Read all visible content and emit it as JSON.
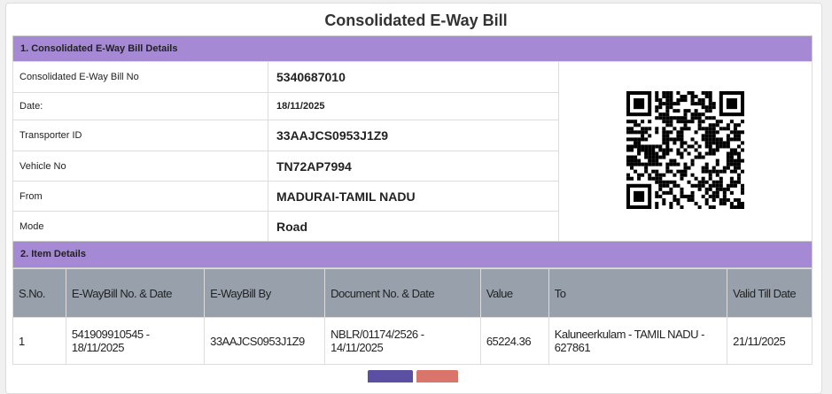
{
  "title": "Consolidated E-Way Bill",
  "section1": {
    "heading": "1. Consolidated E-Way Bill Details",
    "rows": [
      {
        "label": "Consolidated E-Way Bill No",
        "value": "5340687010"
      },
      {
        "label": "Date:",
        "value": "18/11/2025"
      },
      {
        "label": "Transporter ID",
        "value": "33AAJCS0953J1Z9"
      },
      {
        "label": "Vehicle No",
        "value": "TN72AP7994"
      },
      {
        "label": "From",
        "value": "MADURAI-TAMIL NADU"
      },
      {
        "label": "Mode",
        "value": "Road"
      }
    ]
  },
  "section2": {
    "heading": "2. Item Details",
    "columns": [
      "S.No.",
      "E-WayBill No. & Date",
      "E-WayBill By",
      "Document No. & Date",
      "Value",
      "To",
      "Valid Till Date"
    ],
    "rows": [
      [
        "1",
        "541909910545 - 18/11/2025",
        "33AAJCS0953J1Z9",
        "NBLR/01174/2526 - 14/11/2025",
        "65224.36",
        "Kaluneerkulam - TAMIL NADU - 627861",
        "21/11/2025"
      ]
    ]
  },
  "colors": {
    "section_header": "#a689d4",
    "table_header": "#98a1ab",
    "button_primary": "#5b4fa3",
    "button_danger": "#d9756b"
  },
  "qr_icon": "qr-code"
}
